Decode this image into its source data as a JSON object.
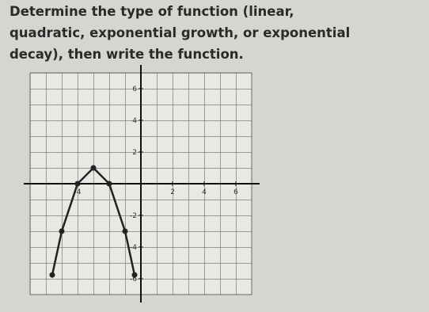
{
  "chart_data": {
    "type": "line",
    "title": [
      "Determine the type of function (linear,",
      "quadratic, exponential growth, or exponential",
      "decay), then write the function."
    ],
    "x": [
      -5.6,
      -5,
      -4,
      -3,
      -2,
      -1,
      -0.4
    ],
    "series": [
      {
        "color": "#222222",
        "values": [
          -5.76,
          -3,
          0,
          1,
          0,
          -3,
          -5.76
        ]
      }
    ],
    "xlim": [
      -7,
      7
    ],
    "ylim": [
      -7,
      7
    ],
    "xticks": [
      -4,
      2,
      4,
      6
    ],
    "yticks": [
      6,
      4,
      2,
      -2,
      -4,
      -6
    ],
    "grid": true
  }
}
